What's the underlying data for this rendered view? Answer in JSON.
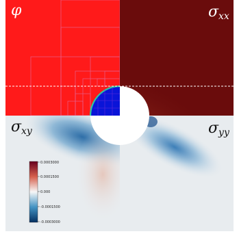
{
  "panels": {
    "top_left": {
      "symbol": "φ",
      "subscript": ""
    },
    "top_right": {
      "symbol": "σ",
      "subscript": "xx"
    },
    "bottom_left": {
      "symbol": "σ",
      "subscript": "xy"
    },
    "bottom_right": {
      "symbol": "σ",
      "subscript": "yy"
    }
  },
  "colorbar": {
    "ticks": [
      "0.0003000",
      "0.0001500",
      "0.000",
      "-0.0001500",
      "-0.0003000"
    ],
    "colors": {
      "top": "#67001f",
      "upper": "#d6604d",
      "middle": "#f7f7f7",
      "lower": "#4393c3",
      "bottom": "#053061"
    }
  },
  "colors": {
    "phi_field": "#ff1a1a",
    "phi_inclusion": "#0a14d8",
    "sigma_xx_bg": "#6a0c0c",
    "sigma_low_bg": "#e8ecef",
    "mesh_lines": "#e05a9a"
  }
}
